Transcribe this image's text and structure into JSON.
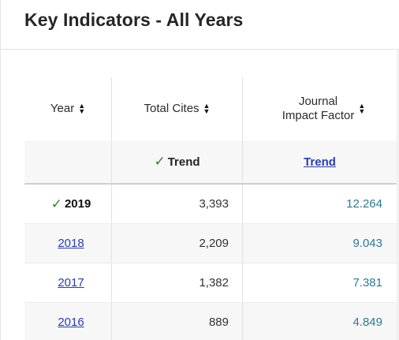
{
  "panel": {
    "title": "Key Indicators - All Years"
  },
  "columns": {
    "year": "Year",
    "total_cites": "Total Cites",
    "jif_line1": "Journal",
    "jif_line2": "Impact Factor",
    "sort_up": "▲",
    "sort_down": "▼"
  },
  "trend": {
    "cites_label": "Trend",
    "jif_label": "Trend",
    "check_glyph": "✓"
  },
  "rows": [
    {
      "year": "2019",
      "total_cites": "3,393",
      "jif": "12.264"
    },
    {
      "year": "2018",
      "total_cites": "2,209",
      "jif": "9.043"
    },
    {
      "year": "2017",
      "total_cites": "1,382",
      "jif": "7.381"
    },
    {
      "year": "2016",
      "total_cites": "889",
      "jif": "4.849"
    }
  ],
  "colors": {
    "check": "#2c8a1c",
    "link": "#2a3bb7",
    "jif_value": "#2d7a96"
  }
}
